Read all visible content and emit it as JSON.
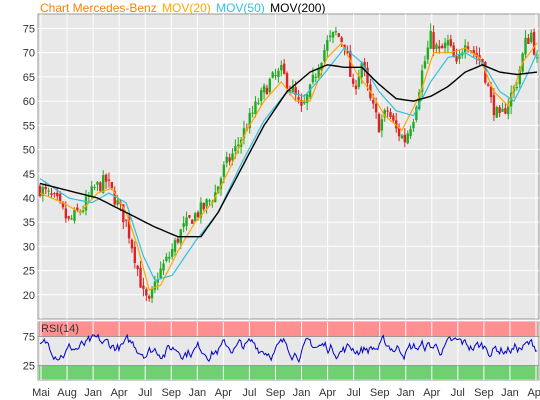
{
  "legend": {
    "title": "Chart Mercedes-Benz",
    "mov20": "MOV(20)",
    "mov50": "MOV(50)",
    "mov200": "MOV(200)"
  },
  "colors": {
    "title": "#ff8000",
    "mov20": "#ffa500",
    "mov50": "#30c0e0",
    "mov200": "#000000",
    "candle_up": "#22aa22",
    "candle_down": "#dd2222",
    "rsi_line": "#0000cc",
    "rsi_overbought_band": "#ff9090",
    "rsi_oversold_band": "#70d070",
    "background": "#e8e8e8",
    "grid": "#ffffff"
  },
  "chart_data": [
    {
      "type": "candlestick",
      "title": "Chart Mercedes-Benz",
      "ylim": [
        15,
        78
      ],
      "yticks": [
        20,
        25,
        30,
        35,
        40,
        45,
        50,
        55,
        60,
        65,
        70,
        75
      ],
      "x_tick_labels": [
        "Mai",
        "Aug",
        "Jan",
        "Apr",
        "Jul",
        "Sep",
        "Jan",
        "Apr",
        "Jul",
        "Sep",
        "Jan",
        "Apr",
        "Jul",
        "Sep",
        "Jan",
        "Apr",
        "Jul",
        "Sep",
        "Jan",
        "Apr"
      ],
      "close_anchors": [
        [
          0,
          42
        ],
        [
          6,
          39
        ],
        [
          10,
          35
        ],
        [
          15,
          38
        ],
        [
          19,
          42
        ],
        [
          23,
          43.5
        ],
        [
          26,
          40
        ],
        [
          30,
          35
        ],
        [
          33,
          28
        ],
        [
          36,
          20
        ],
        [
          38,
          18
        ],
        [
          41,
          24
        ],
        [
          45,
          28
        ],
        [
          49,
          33
        ],
        [
          53,
          36
        ],
        [
          57,
          38
        ],
        [
          61,
          41
        ],
        [
          64,
          46
        ],
        [
          68,
          50
        ],
        [
          72,
          55
        ],
        [
          76,
          60
        ],
        [
          80,
          64
        ],
        [
          84,
          66
        ],
        [
          88,
          62
        ],
        [
          91,
          58
        ],
        [
          94,
          62
        ],
        [
          97,
          68
        ],
        [
          100,
          72
        ],
        [
          103,
          74
        ],
        [
          106,
          72
        ],
        [
          109,
          62
        ],
        [
          112,
          68
        ],
        [
          115,
          60
        ],
        [
          118,
          55
        ],
        [
          121,
          58
        ],
        [
          124,
          54
        ],
        [
          127,
          52
        ],
        [
          130,
          57
        ],
        [
          133,
          66
        ],
        [
          136,
          73
        ],
        [
          139,
          70
        ],
        [
          142,
          72
        ],
        [
          145,
          67
        ],
        [
          148,
          73
        ],
        [
          151,
          70
        ],
        [
          154,
          68
        ],
        [
          157,
          60
        ],
        [
          160,
          56
        ],
        [
          163,
          60
        ],
        [
          166,
          64
        ],
        [
          169,
          72
        ],
        [
          171,
          74
        ],
        [
          173,
          68
        ]
      ],
      "mov20_anchors": [
        [
          0,
          41
        ],
        [
          8,
          39
        ],
        [
          14,
          37
        ],
        [
          20,
          41
        ],
        [
          25,
          42
        ],
        [
          30,
          37
        ],
        [
          34,
          30
        ],
        [
          38,
          21
        ],
        [
          42,
          22
        ],
        [
          48,
          29
        ],
        [
          54,
          35
        ],
        [
          60,
          39
        ],
        [
          66,
          46
        ],
        [
          72,
          54
        ],
        [
          78,
          60
        ],
        [
          84,
          64
        ],
        [
          89,
          60
        ],
        [
          94,
          60
        ],
        [
          100,
          69
        ],
        [
          105,
          72
        ],
        [
          110,
          66
        ],
        [
          115,
          62
        ],
        [
          120,
          57
        ],
        [
          126,
          54
        ],
        [
          132,
          61
        ],
        [
          137,
          70
        ],
        [
          143,
          70
        ],
        [
          148,
          71
        ],
        [
          153,
          69
        ],
        [
          158,
          62
        ],
        [
          163,
          59
        ],
        [
          168,
          68
        ],
        [
          173,
          72
        ]
      ],
      "mov50_anchors": [
        [
          0,
          44
        ],
        [
          10,
          40
        ],
        [
          18,
          39
        ],
        [
          24,
          41
        ],
        [
          30,
          39
        ],
        [
          36,
          28
        ],
        [
          40,
          23
        ],
        [
          46,
          24
        ],
        [
          54,
          31
        ],
        [
          62,
          37
        ],
        [
          70,
          47
        ],
        [
          78,
          56
        ],
        [
          86,
          62
        ],
        [
          92,
          61
        ],
        [
          98,
          65
        ],
        [
          106,
          71
        ],
        [
          112,
          68
        ],
        [
          118,
          62
        ],
        [
          124,
          58
        ],
        [
          130,
          57
        ],
        [
          136,
          64
        ],
        [
          142,
          69
        ],
        [
          148,
          70
        ],
        [
          154,
          68
        ],
        [
          160,
          62
        ],
        [
          165,
          60
        ],
        [
          170,
          66
        ],
        [
          173,
          70
        ]
      ],
      "mov200_anchors": [
        [
          0,
          43
        ],
        [
          10,
          41.5
        ],
        [
          20,
          40
        ],
        [
          30,
          37
        ],
        [
          40,
          34
        ],
        [
          48,
          32
        ],
        [
          56,
          32
        ],
        [
          62,
          37
        ],
        [
          70,
          46
        ],
        [
          78,
          55
        ],
        [
          86,
          62
        ],
        [
          94,
          66
        ],
        [
          100,
          67.5
        ],
        [
          106,
          67
        ],
        [
          112,
          67
        ],
        [
          118,
          63.5
        ],
        [
          124,
          60.5
        ],
        [
          130,
          60
        ],
        [
          136,
          61
        ],
        [
          142,
          63
        ],
        [
          148,
          66
        ],
        [
          154,
          67.5
        ],
        [
          160,
          66
        ],
        [
          166,
          65.5
        ],
        [
          173,
          66
        ]
      ],
      "candle_count": 174
    },
    {
      "type": "line",
      "title": "RSI(14)",
      "ylim": [
        0,
        100
      ],
      "yticks": [
        25,
        75
      ],
      "overbought": 75,
      "oversold": 25,
      "typical_range": [
        25,
        82
      ]
    }
  ]
}
